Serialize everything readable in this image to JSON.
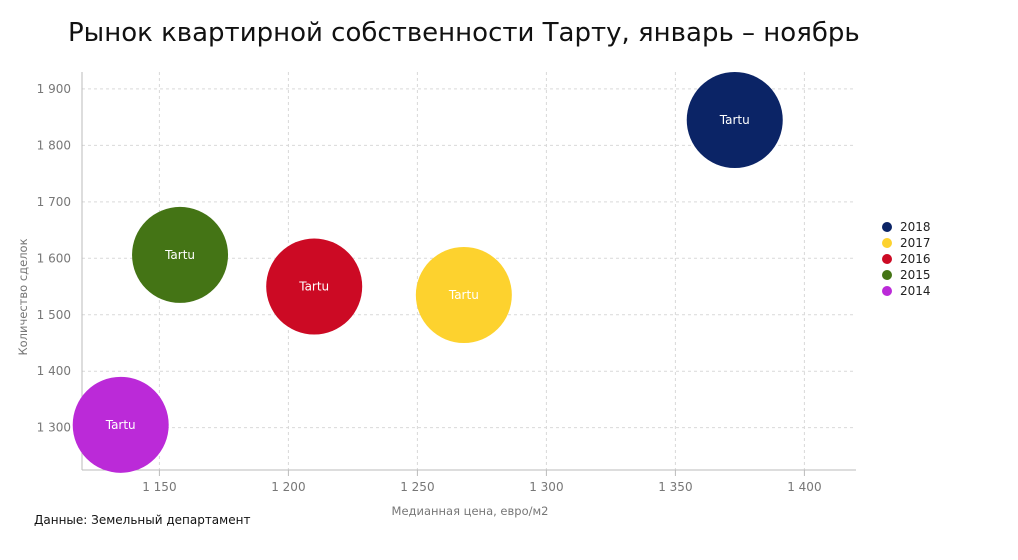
{
  "chart_data": {
    "type": "scatter",
    "title": "Рынок квартирной собственности Тарту, январь – ноябрь",
    "xlabel": "Медианная цена, евро/м2",
    "ylabel": "Количество сделок",
    "xlim": [
      1120,
      1420
    ],
    "ylim": [
      1225,
      1930
    ],
    "x_ticks": [
      1150,
      1200,
      1250,
      1300,
      1350,
      1400
    ],
    "x_tick_labels": [
      "1 150",
      "1 200",
      "1 250",
      "1 300",
      "1 350",
      "1 400"
    ],
    "y_ticks": [
      1300,
      1400,
      1500,
      1600,
      1700,
      1800,
      1900
    ],
    "y_tick_labels": [
      "1 300",
      "1 400",
      "1 500",
      "1 600",
      "1 700",
      "1 800",
      "1 900"
    ],
    "grid": true,
    "legend_position": "right",
    "series": [
      {
        "name": "2018",
        "color": "#0b2466",
        "points": [
          {
            "x": 1373,
            "y": 1845,
            "label": "Tartu"
          }
        ]
      },
      {
        "name": "2017",
        "color": "#fdd22e",
        "points": [
          {
            "x": 1268,
            "y": 1535,
            "label": "Tartu"
          }
        ]
      },
      {
        "name": "2016",
        "color": "#cc0a24",
        "points": [
          {
            "x": 1210,
            "y": 1550,
            "label": "Tartu"
          }
        ]
      },
      {
        "name": "2015",
        "color": "#447415",
        "points": [
          {
            "x": 1158,
            "y": 1606,
            "label": "Tartu"
          }
        ]
      },
      {
        "name": "2014",
        "color": "#bb2ad8",
        "points": [
          {
            "x": 1135,
            "y": 1305,
            "label": "Tartu"
          }
        ]
      }
    ]
  },
  "source_text": "Данные: Земельный департамент"
}
